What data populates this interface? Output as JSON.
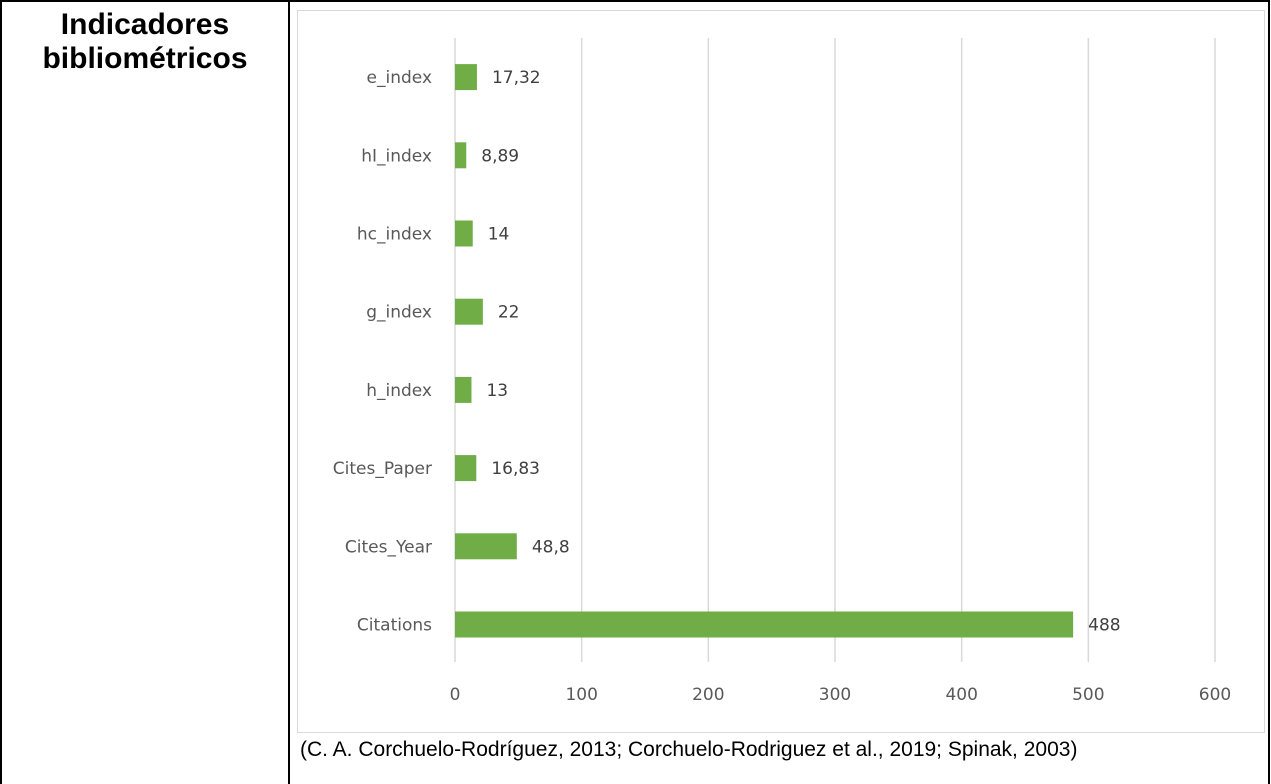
{
  "left_header": "Indicadores bibliométricos",
  "caption": "(C. A. Corchuelo-Rodríguez, 2013; Corchuelo-Rodriguez et al., 2019; Spinak, 2003)",
  "colors": {
    "bar": "#70ad47",
    "grid": "#d9d9d9",
    "text": "#595959"
  },
  "chart_data": {
    "type": "bar",
    "orientation": "horizontal",
    "categories": [
      "e_index",
      "hI_index",
      "hc_index",
      "g_index",
      "h_index",
      "Cites_Paper",
      "Cites_Year",
      "Citations"
    ],
    "values": [
      17.32,
      8.89,
      14,
      22,
      13,
      16.83,
      48.8,
      488
    ],
    "data_labels": [
      "17,32",
      "8,89",
      "14",
      "22",
      "13",
      "16,83",
      "48,8",
      "488"
    ],
    "xlim": [
      0,
      600
    ],
    "xticks": [
      0,
      100,
      200,
      300,
      400,
      500,
      600
    ],
    "title": "",
    "xlabel": "",
    "ylabel": "",
    "grid": true,
    "legend": "none"
  }
}
